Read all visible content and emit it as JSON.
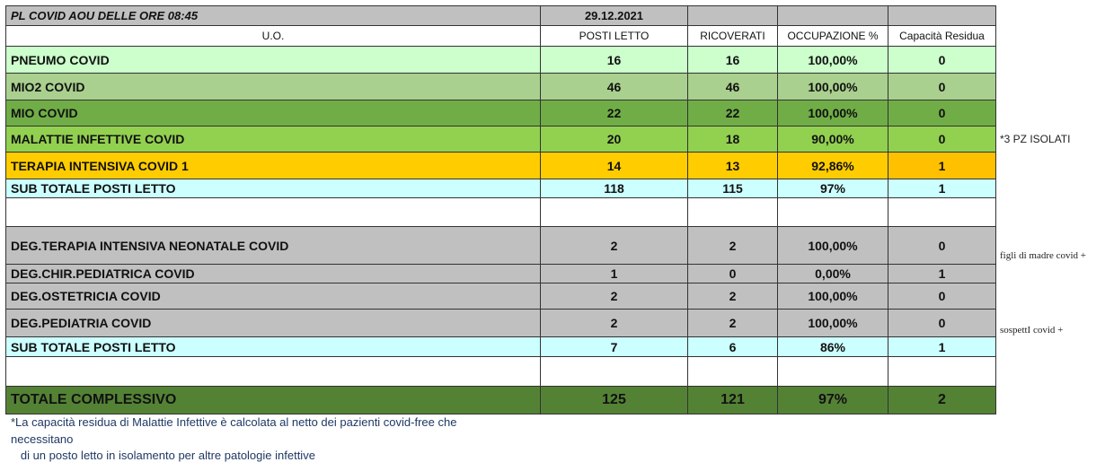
{
  "title": "PL COVID AOU DELLE ORE  08:45",
  "date": "29.12.2021",
  "headers": [
    "U.O.",
    "POSTI LETTO",
    "RICOVERATI",
    "OCCUPAZIONE %",
    "Capacità Residua"
  ],
  "colors": {
    "pneumo": "#ccffcc",
    "mio2": "#a9d08e",
    "mio": "#70ad47",
    "malattie": "#92d050",
    "terapia": "#ffcc00",
    "terapia_cap": "#ffc000",
    "subtotal": "#ccffff",
    "gray": "#c0c0c0",
    "total": "#548235"
  },
  "rows1": [
    {
      "uo": "PNEUMO COVID",
      "posti": "16",
      "ricoverati": "16",
      "occ": "100,00%",
      "cap": "0"
    },
    {
      "uo": "MIO2 COVID",
      "posti": "46",
      "ricoverati": "46",
      "occ": "100,00%",
      "cap": "0"
    },
    {
      "uo": "MIO COVID",
      "posti": "22",
      "ricoverati": "22",
      "occ": "100,00%",
      "cap": "0"
    },
    {
      "uo": "MALATTIE INFETTIVE COVID",
      "posti": "20",
      "ricoverati": "18",
      "occ": "90,00%",
      "cap": "0"
    },
    {
      "uo": "TERAPIA INTENSIVA COVID 1",
      "posti": "14",
      "ricoverati": "13",
      "occ": "92,86%",
      "cap": "1"
    }
  ],
  "subtotal1": {
    "uo": "SUB TOTALE POSTI LETTO",
    "posti": "118",
    "ricoverati": "115",
    "occ": "97%",
    "cap": "1"
  },
  "rows2": [
    {
      "uo": "DEG.TERAPIA INTENSIVA NEONATALE COVID",
      "posti": "2",
      "ricoverati": "2",
      "occ": "100,00%",
      "cap": "0"
    },
    {
      "uo": "DEG.CHIR.PEDIATRICA COVID",
      "posti": "1",
      "ricoverati": "0",
      "occ": "0,00%",
      "cap": "1"
    },
    {
      "uo": "DEG.OSTETRICIA COVID",
      "posti": "2",
      "ricoverati": "2",
      "occ": "100,00%",
      "cap": "0"
    },
    {
      "uo": "DEG.PEDIATRIA COVID",
      "posti": "2",
      "ricoverati": "2",
      "occ": "100,00%",
      "cap": "0"
    }
  ],
  "subtotal2": {
    "uo": "SUB TOTALE POSTI LETTO",
    "posti": "7",
    "ricoverati": "6",
    "occ": "86%",
    "cap": "1"
  },
  "total": {
    "uo": "TOTALE  COMPLESSIVO",
    "posti": "125",
    "ricoverati": "121",
    "occ": "97%",
    "cap": "2"
  },
  "notes": {
    "isolati": "*3 PZ  ISOLATI",
    "figli": "figli di madre covid +",
    "sospetti": "sospettI covid +"
  },
  "footer": [
    "*La capacità residua di Malattie Infettive è calcolata al netto dei pazienti covid-free che",
    "necessitano",
    "   di un posto letto in isolamento per altre patologie infettive"
  ]
}
